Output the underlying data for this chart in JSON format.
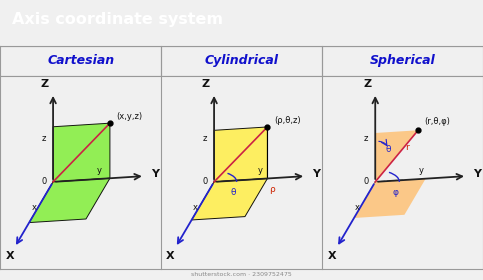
{
  "title": "Axis coordinate system",
  "title_bg": "#b5006e",
  "title_text_color": "#ffffff",
  "header_bg": "#dcdcdc",
  "panel_bg": "#f5f5f5",
  "section_titles": [
    "Cartesian",
    "Cylindrical",
    "Spherical"
  ],
  "section_title_color": "#1010cc",
  "axis_color": "#222222",
  "arrow_color": "#222222",
  "blue_color": "#2222cc",
  "red_color": "#cc2200",
  "pink_color": "#cc2244",
  "green_fill": "#88ee44",
  "yellow_fill": "#ffee55",
  "orange_fill": "#ffbb66",
  "dashed_color": "#666666",
  "label_color": "#111111",
  "border_color": "#999999",
  "watermark": "shutterstock.com · 2309752475"
}
